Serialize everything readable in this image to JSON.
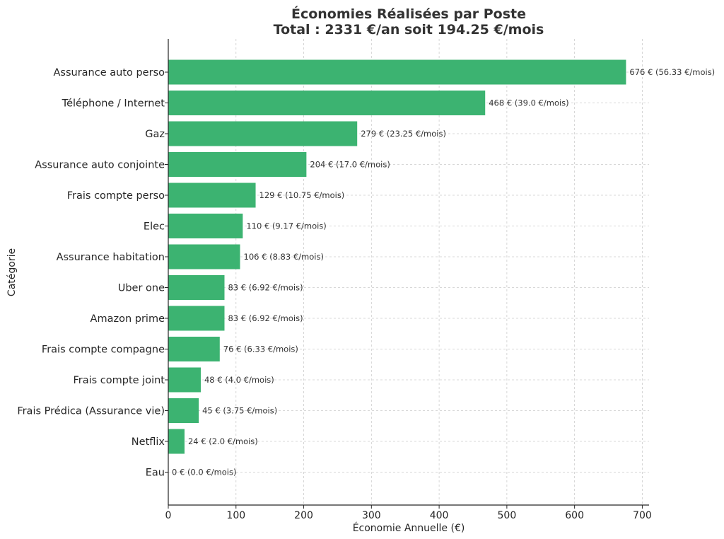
{
  "chart_data": {
    "type": "bar",
    "orientation": "horizontal",
    "title_line1": "Économies Réalisées par Poste",
    "title_line2": "Total : 2331 €/an soit 194.25 €/mois",
    "xlabel": "Économie Annuelle (€)",
    "ylabel": "Catégorie",
    "xlim": [
      0,
      710
    ],
    "xticks": [
      0,
      100,
      200,
      300,
      400,
      500,
      600,
      700
    ],
    "grid": true,
    "bar_color": "#3cb371",
    "categories": [
      "Assurance auto perso",
      "Téléphone / Internet",
      "Gaz",
      "Assurance auto conjointe",
      "Frais compte perso",
      "Elec",
      "Assurance habitation",
      "Uber one",
      "Amazon prime",
      "Frais compte compagne",
      "Frais compte joint",
      "Frais Prédica (Assurance vie)",
      "Netflix",
      "Eau"
    ],
    "values": [
      676,
      468,
      279,
      204,
      129,
      110,
      106,
      83,
      83,
      76,
      48,
      45,
      24,
      0
    ],
    "data_labels": [
      "676 € (56.33 €/mois)",
      "468 € (39.0 €/mois)",
      "279 € (23.25 €/mois)",
      "204 € (17.0 €/mois)",
      "129 € (10.75 €/mois)",
      "110 € (9.17 €/mois)",
      "106 € (8.83 €/mois)",
      "83 € (6.92 €/mois)",
      "83 € (6.92 €/mois)",
      "76 € (6.33 €/mois)",
      "48 € (4.0 €/mois)",
      "45 € (3.75 €/mois)",
      "24 € (2.0 €/mois)",
      "0 € (0.0 €/mois)"
    ]
  }
}
